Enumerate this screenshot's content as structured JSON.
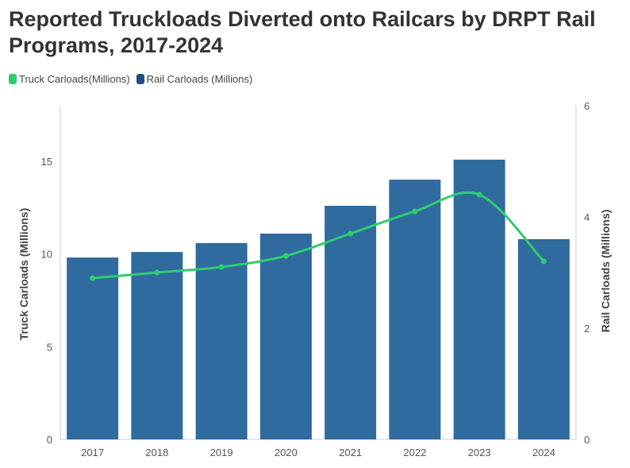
{
  "chart_data": {
    "type": "bar",
    "title": "Reported Truckloads Diverted onto Railcars by DRPT Rail Programs, 2017-2024",
    "categories": [
      "2017",
      "2018",
      "2019",
      "2020",
      "2021",
      "2022",
      "2023",
      "2024"
    ],
    "series": [
      {
        "name": "Truck Carloads(Millions)",
        "type": "line",
        "axis": "left",
        "color": "#2ecc71",
        "values": [
          8.7,
          9.0,
          9.3,
          9.9,
          11.1,
          12.3,
          13.2,
          9.6
        ]
      },
      {
        "name": "Rail Carloads (Millions)",
        "type": "bar",
        "axis": "right",
        "color": "#2f6b9e",
        "values": [
          3.27,
          3.37,
          3.53,
          3.7,
          4.2,
          4.67,
          5.03,
          3.6
        ]
      }
    ],
    "y_left": {
      "label": "Truck Carloads (Millions)",
      "range": [
        0,
        18
      ],
      "ticks": [
        0,
        5,
        10,
        15
      ]
    },
    "y_right": {
      "label": "Rail Carloads (Millions)",
      "range": [
        0,
        6
      ],
      "ticks": [
        0,
        2,
        4,
        6
      ]
    },
    "legend_position": "top-left",
    "grid": false
  }
}
